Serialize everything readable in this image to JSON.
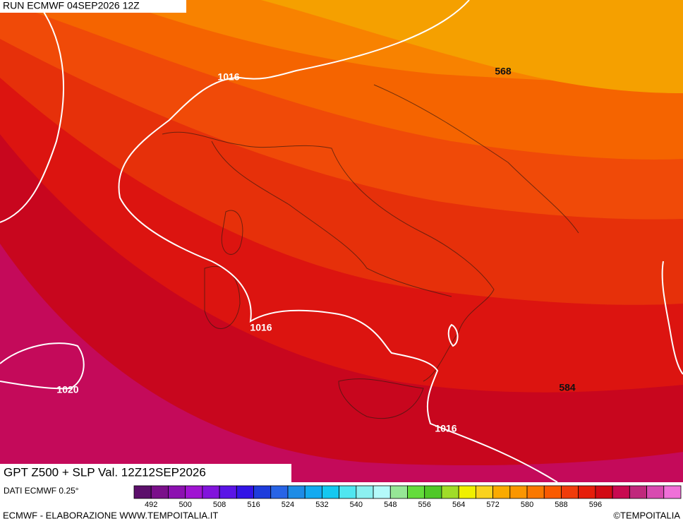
{
  "header": {
    "run": "RUN ECMWF 04SEP2026 12Z"
  },
  "map": {
    "contour_labels": [
      "1016",
      "568",
      "1016",
      "1020",
      "584",
      "1016"
    ]
  },
  "title": "GPT Z500 + SLP Val. 12Z12SEP2026",
  "legend": {
    "source": "DATI ECMWF 0.25°",
    "ticks": [
      492,
      500,
      508,
      516,
      524,
      532,
      540,
      548,
      556,
      564,
      572,
      580,
      588,
      596
    ],
    "colors": [
      "#5c0f6b",
      "#7a0f8a",
      "#8c10b0",
      "#a014d2",
      "#8214dc",
      "#5a14e6",
      "#3214e6",
      "#1e3cdc",
      "#2864e6",
      "#1e8ce6",
      "#14aaf0",
      "#14c8f0",
      "#50e6f0",
      "#8cf0f0",
      "#b4fafa",
      "#96e696",
      "#64dc3c",
      "#50c828",
      "#a0dc28",
      "#f0f000",
      "#fad21e",
      "#faaa00",
      "#fa9600",
      "#fa7800",
      "#fa5a00",
      "#f03c0a",
      "#e61e0a",
      "#d20a14",
      "#c80a50",
      "#c0287c",
      "#d84ab0",
      "#f070d8"
    ]
  },
  "footer": {
    "left": "ECMWF - ELABORAZIONE WWW.TEMPOITALIA.IT",
    "right": "©TEMPOITALIA"
  }
}
